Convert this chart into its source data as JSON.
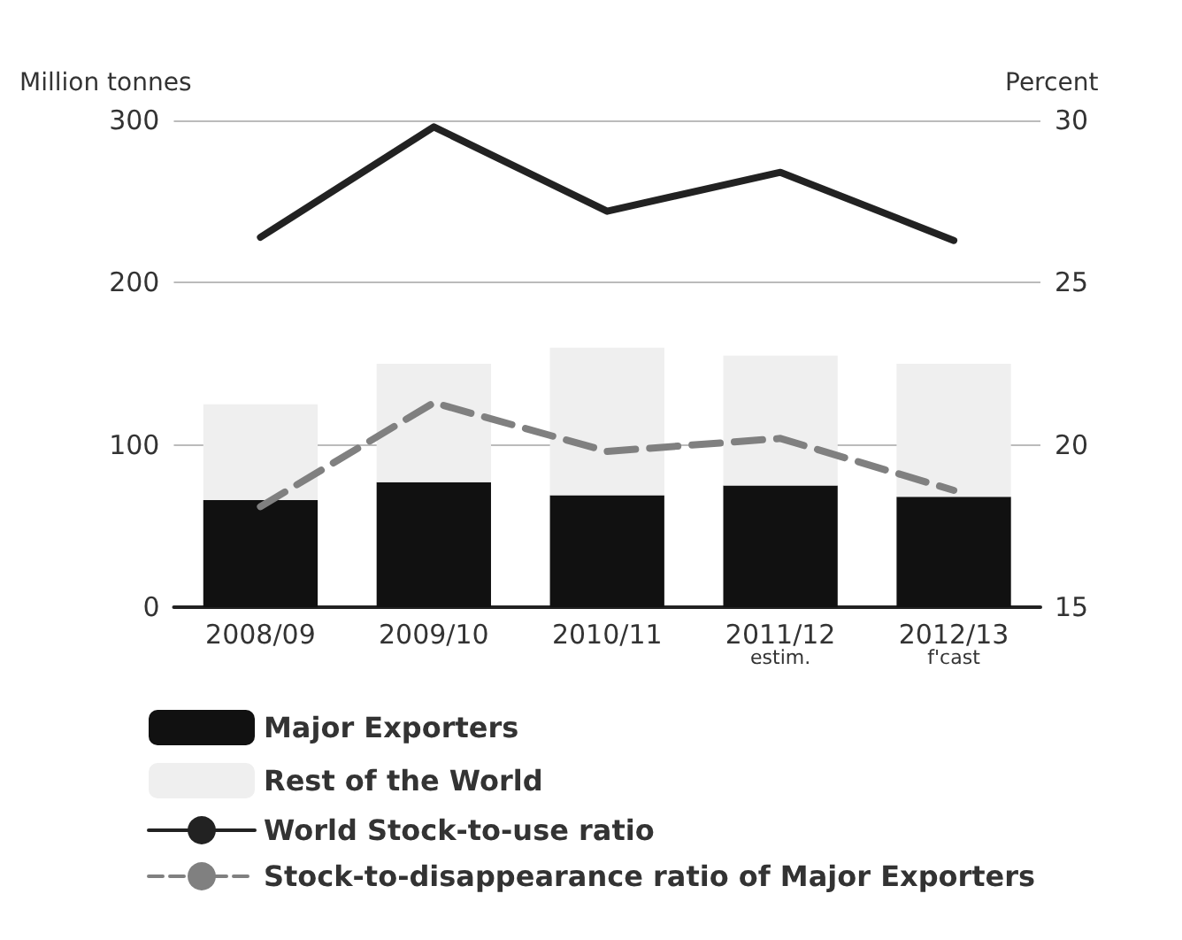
{
  "chart_data": {
    "type": "bar",
    "stacked": true,
    "ylabel": "Million tonnes",
    "y2label": "Percent",
    "categories": [
      "2008/09",
      "2009/10",
      "2010/11",
      "2011/12\nestim.",
      "2012/13\nf'cast"
    ],
    "series": [
      {
        "name": "Major Exporters",
        "color": "#111111",
        "values": [
          66,
          77,
          69,
          75,
          68
        ]
      },
      {
        "name": "Rest of the World",
        "color": "#efefef",
        "values": [
          59,
          73,
          91,
          80,
          82
        ]
      },
      {
        "name": "World Stock-to-use ratio",
        "type": "line",
        "axis": "y2",
        "color": "#222222",
        "line_style": "solid",
        "values": [
          26.4,
          29.8,
          27.2,
          28.4,
          26.3
        ]
      },
      {
        "name": "Stock-to-disappearance ratio of Major Exporters",
        "type": "line",
        "axis": "y2",
        "color": "#808080",
        "line_style": "dashed",
        "values": [
          18.1,
          21.3,
          19.8,
          20.2,
          18.6
        ]
      }
    ],
    "ylim": [
      0,
      300
    ],
    "yticks": [
      0,
      100,
      200,
      300
    ],
    "y2lim": [
      15,
      30
    ],
    "y2ticks": [
      15,
      20,
      25,
      30
    ],
    "grid": "y",
    "legend": "bottom",
    "marker": "none"
  }
}
